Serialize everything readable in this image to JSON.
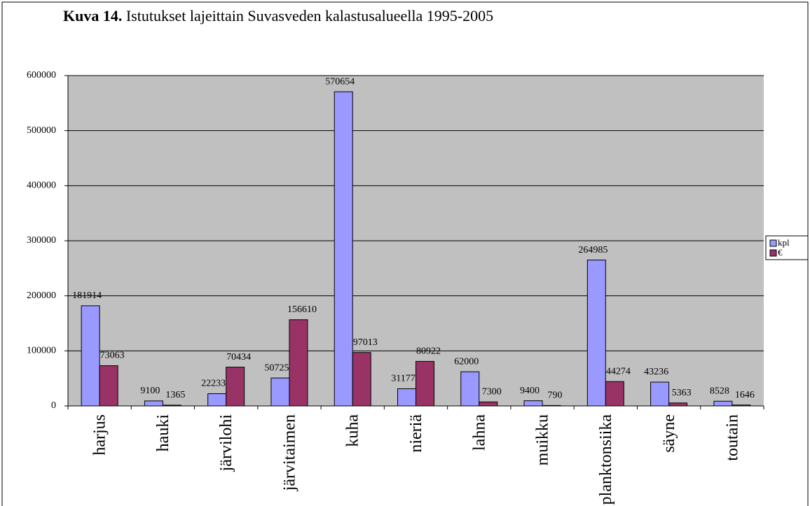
{
  "chart_data": {
    "type": "bar",
    "figure_label": "Kuva 14.",
    "title": "Istutukset lajeittain Suvasveden kalastusalueella 1995-2005",
    "categories": [
      "harjus",
      "hauki",
      "järvilohi",
      "järvitaimen",
      "kuha",
      "nieriä",
      "lahna",
      "muikku",
      "planktonsiika",
      "säyne",
      "toutain"
    ],
    "series": [
      {
        "name": "kpl",
        "color": "#9999ff",
        "values": [
          181914,
          9100,
          22233,
          50725,
          570654,
          31177,
          62000,
          9400,
          264985,
          43236,
          8528
        ]
      },
      {
        "name": "€",
        "color": "#993366",
        "values": [
          73063,
          1365,
          70434,
          156610,
          97013,
          80922,
          7300,
          790,
          44274,
          5363,
          1646
        ]
      }
    ],
    "ylim": [
      0,
      600000
    ],
    "yticks": [
      0,
      100000,
      200000,
      300000,
      400000,
      500000,
      600000
    ],
    "grid": true,
    "legend": "right"
  }
}
